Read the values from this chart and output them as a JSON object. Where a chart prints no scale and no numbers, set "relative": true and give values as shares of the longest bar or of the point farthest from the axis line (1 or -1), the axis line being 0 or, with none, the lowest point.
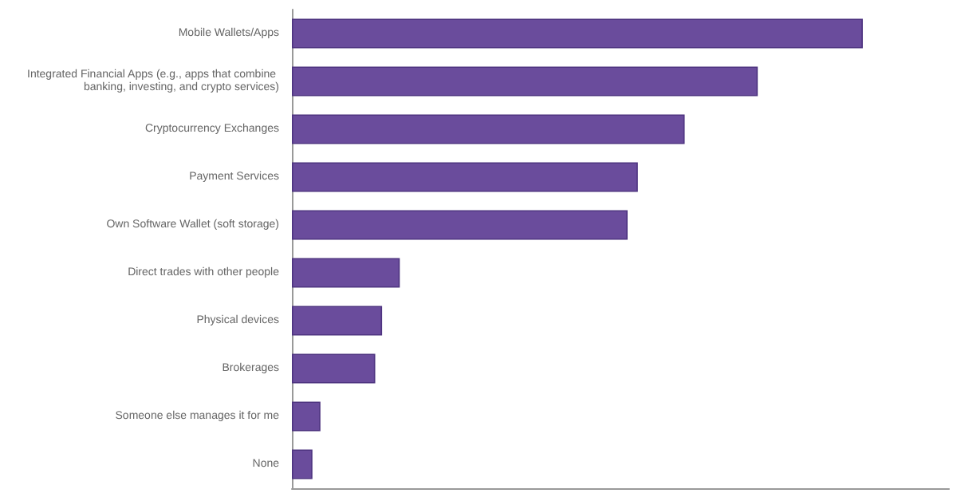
{
  "chart_data": {
    "type": "bar",
    "orientation": "horizontal",
    "relative": true,
    "categories": [
      "Mobile Wallets/Apps",
      "Integrated Financial Apps (e.g., apps that combine banking, investing, and crypto services)",
      "Cryptocurrency Exchanges",
      "Payment Services",
      "Own Software Wallet (soft storage)",
      "Direct trades with other people",
      "Physical devices",
      "Brokerages",
      "Someone else manages it for me",
      "None"
    ],
    "values": [
      1,
      0.816,
      0.688,
      0.606,
      0.588,
      0.189,
      0.158,
      0.146,
      0.05,
      0.036
    ],
    "color": "#6a4c9c",
    "grid": false
  }
}
